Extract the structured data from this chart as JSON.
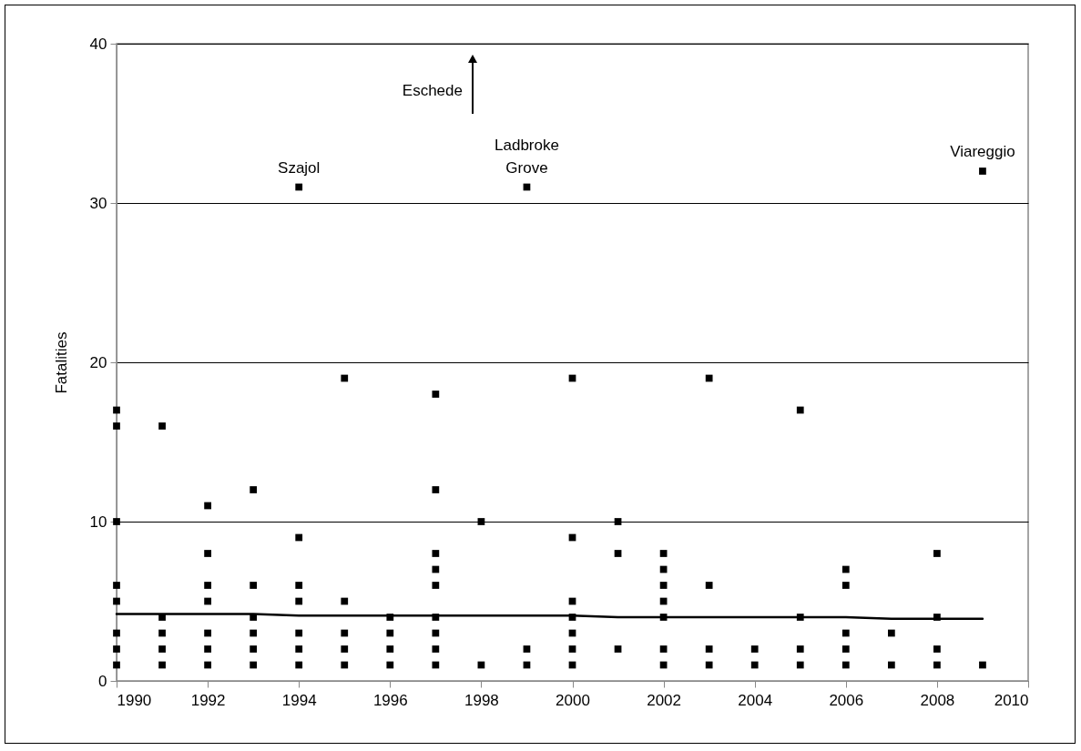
{
  "chart_data": {
    "type": "scatter",
    "ylabel": "Fatalities",
    "xlim": [
      1990,
      2010
    ],
    "xticks": [
      1990,
      1992,
      1994,
      1996,
      1998,
      2000,
      2002,
      2004,
      2006,
      2008,
      2010
    ],
    "ylim": [
      0,
      40
    ],
    "yticks": [
      0,
      10,
      20,
      30,
      40
    ],
    "grid": "y",
    "series": [
      {
        "type": "scatter",
        "color": "#000000",
        "marker": "square",
        "x": [
          1990,
          1990,
          1990,
          1990,
          1990,
          1990,
          1990,
          1990,
          1991,
          1991,
          1991,
          1991,
          1991,
          1992,
          1992,
          1992,
          1992,
          1992,
          1992,
          1992,
          1993,
          1993,
          1993,
          1993,
          1993,
          1993,
          1994,
          1994,
          1994,
          1994,
          1994,
          1994,
          1994,
          1995,
          1995,
          1995,
          1995,
          1995,
          1996,
          1996,
          1996,
          1996,
          1997,
          1997,
          1997,
          1997,
          1997,
          1997,
          1997,
          1997,
          1997,
          1998,
          1998,
          1999,
          1999,
          1999,
          2000,
          2000,
          2000,
          2000,
          2000,
          2000,
          2000,
          2001,
          2001,
          2001,
          2002,
          2002,
          2002,
          2002,
          2002,
          2002,
          2002,
          2003,
          2003,
          2003,
          2003,
          2004,
          2004,
          2005,
          2005,
          2005,
          2005,
          2006,
          2006,
          2006,
          2006,
          2006,
          2007,
          2007,
          2008,
          2008,
          2008,
          2008,
          2009,
          2009
        ],
        "values": [
          17,
          16,
          10,
          6,
          5,
          3,
          2,
          1,
          16,
          4,
          3,
          2,
          1,
          11,
          8,
          6,
          5,
          3,
          2,
          1,
          12,
          6,
          4,
          3,
          2,
          1,
          31,
          9,
          6,
          5,
          3,
          2,
          1,
          19,
          5,
          3,
          2,
          1,
          4,
          3,
          2,
          1,
          18,
          12,
          8,
          7,
          6,
          4,
          3,
          2,
          1,
          10,
          1,
          31,
          2,
          1,
          19,
          9,
          5,
          4,
          3,
          2,
          1,
          10,
          8,
          2,
          8,
          7,
          6,
          5,
          4,
          2,
          1,
          19,
          6,
          2,
          1,
          2,
          1,
          17,
          4,
          2,
          1,
          7,
          6,
          3,
          2,
          1,
          3,
          1,
          8,
          4,
          2,
          1,
          32,
          1
        ]
      },
      {
        "type": "line",
        "color": "#000000",
        "line_style": "solid",
        "marker": "none",
        "x": [
          1990,
          1993,
          1994,
          2000,
          2001,
          2006,
          2007,
          2009
        ],
        "values": [
          4.2,
          4.2,
          4.1,
          4.1,
          4.0,
          4.0,
          3.9,
          3.9
        ]
      }
    ],
    "annotations": [
      {
        "text": "Szajol",
        "x": 1994,
        "y": 31
      },
      {
        "text": "Ladbroke\nGrove",
        "x": 1999,
        "y": 31
      },
      {
        "text": "Viareggio",
        "x": 2009,
        "y": 32
      },
      "Eschede"
    ]
  }
}
